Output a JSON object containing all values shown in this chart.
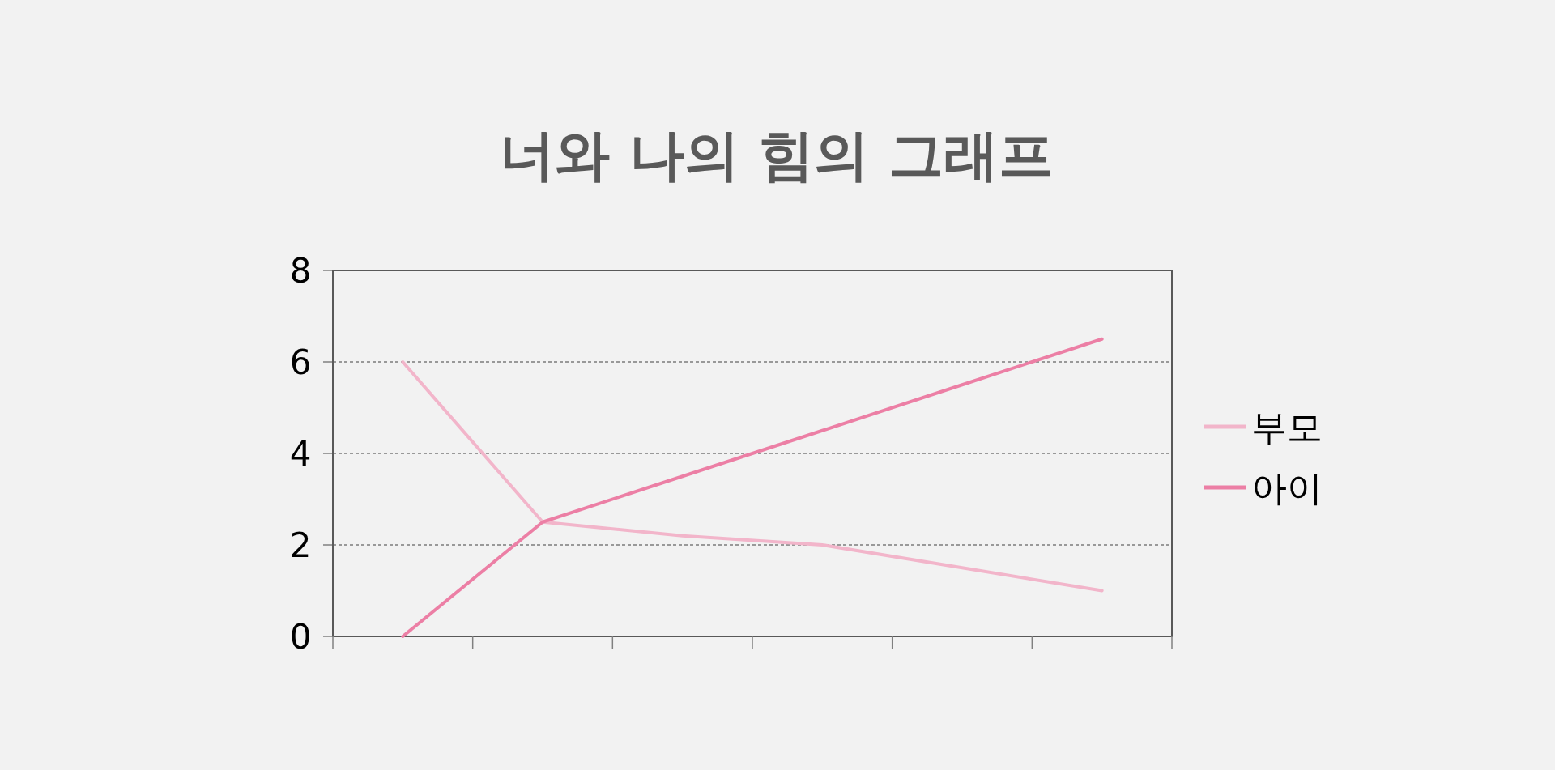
{
  "chart_data": {
    "type": "line",
    "title": "너와 나의 힘의 그래프",
    "categories": [
      null,
      null,
      null,
      null,
      null,
      null
    ],
    "series": [
      {
        "name": "부모",
        "color": "#f2b5ca",
        "values": [
          6,
          2.5,
          2.2,
          2.0,
          1.5,
          1.0
        ]
      },
      {
        "name": "아이",
        "color": "#ec7fa5",
        "values": [
          0,
          2.5,
          3.5,
          4.5,
          5.5,
          6.5
        ]
      }
    ],
    "ylim": [
      0,
      8
    ],
    "yticks": [
      0,
      2,
      4,
      6,
      8
    ],
    "grid": "y",
    "legend": "right",
    "marker": "none",
    "line_style": "solid"
  }
}
